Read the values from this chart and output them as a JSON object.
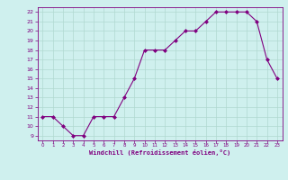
{
  "x": [
    0,
    1,
    2,
    3,
    4,
    5,
    6,
    7,
    8,
    9,
    10,
    11,
    12,
    13,
    14,
    15,
    16,
    17,
    18,
    19,
    20,
    21,
    22,
    23
  ],
  "y": [
    11,
    11,
    10,
    9,
    9,
    11,
    11,
    11,
    13,
    15,
    18,
    18,
    18,
    19,
    20,
    20,
    21,
    22,
    22,
    22,
    22,
    21,
    17,
    15
  ],
  "line_color": "#800080",
  "marker_color": "#800080",
  "bg_color": "#cff0ee",
  "grid_color": "#b0d8d0",
  "xlabel": "Windchill (Refroidissement éolien,°C)",
  "xlabel_color": "#800080",
  "tick_color": "#800080",
  "ylim": [
    8.5,
    22.5
  ],
  "yticks": [
    9,
    10,
    11,
    12,
    13,
    14,
    15,
    16,
    17,
    18,
    19,
    20,
    21,
    22
  ],
  "xlim": [
    -0.5,
    23.5
  ],
  "xticks": [
    0,
    1,
    2,
    3,
    4,
    5,
    6,
    7,
    8,
    9,
    10,
    11,
    12,
    13,
    14,
    15,
    16,
    17,
    18,
    19,
    20,
    21,
    22,
    23
  ]
}
